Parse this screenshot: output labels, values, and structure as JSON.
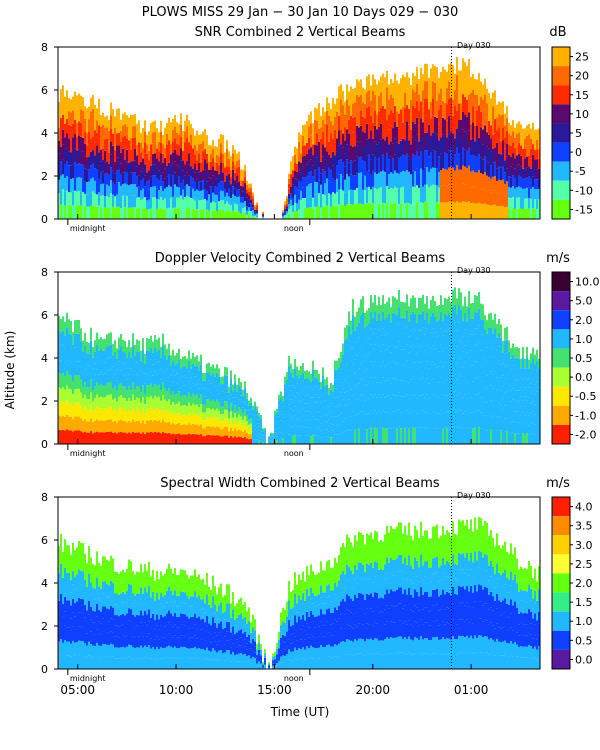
{
  "figure": {
    "title": "PLOWS MISS  29 Jan − 30 Jan 10 Days 029 − 030",
    "xlabel": "Time (UT)",
    "ylabel": "Altitude (km)",
    "day_marker": "Day 030",
    "midnight_label": "midnight",
    "noon_label": "noon",
    "x_ticks": [
      "05:00",
      "10:00",
      "15:00",
      "20:00",
      "01:00"
    ]
  },
  "chart_data": [
    {
      "type": "heatmap",
      "title": "SNR Combined 2 Vertical Beams",
      "units": "dB",
      "xlabel": "Time (UT)",
      "ylabel": "Altitude (km)",
      "ylim": [
        0,
        8
      ],
      "y_ticks": [
        "0",
        "2",
        "4",
        "6",
        "8"
      ],
      "xlim_hours": [
        4.0,
        28.5
      ],
      "colorbar_ticks": [
        "25",
        "20",
        "15",
        "10",
        "5",
        "0",
        "-5",
        "-10",
        "-15"
      ],
      "colors": [
        "#ffb300",
        "#ff6a00",
        "#ff2b00",
        "#5a0a6e",
        "#2a1a9a",
        "#1040ff",
        "#22b8ff",
        "#55ffaa",
        "#66ff11"
      ],
      "echo_top_km": [
        5.9,
        5.6,
        5.3,
        4.8,
        4.4,
        4.2,
        4.6,
        4.1,
        3.6,
        2.9,
        0.0,
        0.0,
        4.2,
        5.0,
        5.8,
        6.3,
        6.6,
        6.4,
        6.8,
        7.0,
        7.2,
        6.8,
        5.2,
        4.2,
        4.5
      ]
    },
    {
      "type": "heatmap",
      "title": "Doppler Velocity Combined 2 Vertical Beams",
      "units": "m/s",
      "xlabel": "Time (UT)",
      "ylabel": "Altitude (km)",
      "ylim": [
        0,
        8
      ],
      "y_ticks": [
        "0",
        "2",
        "4",
        "6",
        "8"
      ],
      "xlim_hours": [
        4.0,
        28.5
      ],
      "colorbar_ticks": [
        "10.0",
        "5.0",
        "2.0",
        "1.0",
        "0.5",
        "0.0",
        "-0.5",
        "-1.0",
        "-2.0"
      ],
      "colors": [
        "#3a0030",
        "#5a1aa0",
        "#1040ff",
        "#22b8ff",
        "#44e070",
        "#aaff33",
        "#ffe800",
        "#ffaa00",
        "#ff2000"
      ],
      "echo_top_km": [
        5.9,
        5.3,
        4.7,
        4.9,
        4.6,
        4.7,
        4.1,
        3.6,
        3.2,
        2.5,
        0.0,
        3.9,
        3.6,
        2.9,
        6.3,
        6.6,
        6.8,
        6.7,
        6.7,
        6.9,
        6.8,
        5.4,
        4.4,
        4.3
      ]
    },
    {
      "type": "heatmap",
      "title": "Spectral Width Combined 2 Vertical Beams",
      "units": "m/s",
      "xlabel": "Time (UT)",
      "ylabel": "Altitude (km)",
      "ylim": [
        0,
        8
      ],
      "y_ticks": [
        "0",
        "2",
        "4",
        "6",
        "8"
      ],
      "xlim_hours": [
        4.0,
        28.5
      ],
      "colorbar_ticks": [
        "4.0",
        "3.5",
        "3.0",
        "2.5",
        "2.0",
        "1.5",
        "1.0",
        "0.5",
        "0.0"
      ],
      "colors": [
        "#ff2000",
        "#ff8c00",
        "#ffd000",
        "#ffff33",
        "#66ff11",
        "#33ee88",
        "#22b8ff",
        "#1040ff",
        "#5a1aa0"
      ],
      "echo_top_km": [
        5.9,
        5.5,
        5.1,
        4.8,
        4.6,
        4.5,
        4.5,
        4.1,
        3.6,
        2.9,
        0.0,
        3.9,
        4.5,
        5.0,
        6.1,
        6.3,
        6.4,
        6.4,
        6.5,
        6.6,
        6.7,
        6.0,
        5.0,
        4.4
      ]
    }
  ]
}
